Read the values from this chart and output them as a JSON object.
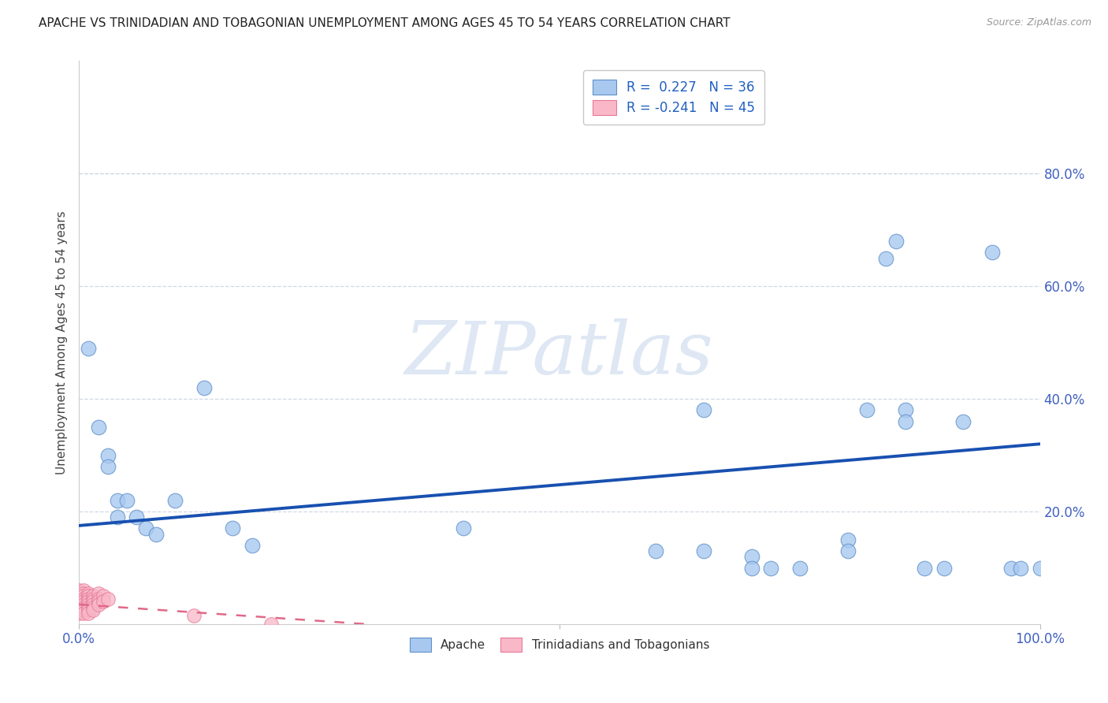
{
  "title": "APACHE VS TRINIDADIAN AND TOBAGONIAN UNEMPLOYMENT AMONG AGES 45 TO 54 YEARS CORRELATION CHART",
  "source_text": "Source: ZipAtlas.com",
  "ylabel": "Unemployment Among Ages 45 to 54 years",
  "xlim": [
    0,
    1.0
  ],
  "ylim": [
    0,
    1.0
  ],
  "xticks": [
    0.0,
    0.5,
    1.0
  ],
  "xticklabels": [
    "0.0%",
    "",
    "100.0%"
  ],
  "yticks": [
    0.2,
    0.4,
    0.6,
    0.8
  ],
  "yticklabels": [
    "20.0%",
    "40.0%",
    "60.0%",
    "80.0%"
  ],
  "background_color": "#ffffff",
  "grid_color": "#cccccc",
  "watermark": "ZIPatlas",
  "watermark_color_r": 200,
  "watermark_color_g": 210,
  "watermark_color_b": 230,
  "apache_color": "#a8c8f0",
  "apache_edge_color": "#6090c8",
  "trinidadian_color": "#f8b8c8",
  "trinidadian_edge_color": "#e87898",
  "apache_R": 0.227,
  "apache_N": 36,
  "trinidadian_R": -0.241,
  "trinidadian_N": 45,
  "apache_trend_color": "#1850b0",
  "trinidadian_trend_color": "#e06888",
  "apache_trend_x0": 0.0,
  "apache_trend_x1": 1.0,
  "apache_trend_y0": 0.175,
  "apache_trend_y1": 0.32,
  "trinidadian_trend_x0": 0.0,
  "trinidadian_trend_x1": 0.3,
  "trinidadian_trend_y0": 0.035,
  "trinidadian_trend_y1": 0.0,
  "apache_points": [
    [
      0.01,
      0.49
    ],
    [
      0.02,
      0.35
    ],
    [
      0.03,
      0.3
    ],
    [
      0.03,
      0.28
    ],
    [
      0.04,
      0.22
    ],
    [
      0.04,
      0.19
    ],
    [
      0.05,
      0.22
    ],
    [
      0.06,
      0.19
    ],
    [
      0.07,
      0.17
    ],
    [
      0.08,
      0.16
    ],
    [
      0.1,
      0.22
    ],
    [
      0.13,
      0.42
    ],
    [
      0.16,
      0.17
    ],
    [
      0.18,
      0.14
    ],
    [
      0.4,
      0.17
    ],
    [
      0.6,
      0.13
    ],
    [
      0.65,
      0.38
    ],
    [
      0.65,
      0.13
    ],
    [
      0.7,
      0.12
    ],
    [
      0.7,
      0.1
    ],
    [
      0.72,
      0.1
    ],
    [
      0.75,
      0.1
    ],
    [
      0.8,
      0.15
    ],
    [
      0.8,
      0.13
    ],
    [
      0.82,
      0.38
    ],
    [
      0.84,
      0.65
    ],
    [
      0.85,
      0.68
    ],
    [
      0.86,
      0.38
    ],
    [
      0.86,
      0.36
    ],
    [
      0.88,
      0.1
    ],
    [
      0.9,
      0.1
    ],
    [
      0.92,
      0.36
    ],
    [
      0.95,
      0.66
    ],
    [
      0.97,
      0.1
    ],
    [
      0.98,
      0.1
    ],
    [
      1.0,
      0.1
    ]
  ],
  "trinidadian_points": [
    [
      0.0,
      0.06
    ],
    [
      0.0,
      0.055
    ],
    [
      0.0,
      0.05
    ],
    [
      0.0,
      0.045
    ],
    [
      0.0,
      0.04
    ],
    [
      0.0,
      0.038
    ],
    [
      0.0,
      0.035
    ],
    [
      0.0,
      0.033
    ],
    [
      0.0,
      0.03
    ],
    [
      0.0,
      0.028
    ],
    [
      0.0,
      0.025
    ],
    [
      0.0,
      0.022
    ],
    [
      0.0,
      0.02
    ],
    [
      0.005,
      0.06
    ],
    [
      0.005,
      0.055
    ],
    [
      0.005,
      0.05
    ],
    [
      0.005,
      0.045
    ],
    [
      0.005,
      0.04
    ],
    [
      0.005,
      0.035
    ],
    [
      0.005,
      0.03
    ],
    [
      0.005,
      0.025
    ],
    [
      0.005,
      0.02
    ],
    [
      0.01,
      0.055
    ],
    [
      0.01,
      0.05
    ],
    [
      0.01,
      0.045
    ],
    [
      0.01,
      0.04
    ],
    [
      0.01,
      0.035
    ],
    [
      0.01,
      0.03
    ],
    [
      0.01,
      0.025
    ],
    [
      0.01,
      0.02
    ],
    [
      0.015,
      0.05
    ],
    [
      0.015,
      0.045
    ],
    [
      0.015,
      0.04
    ],
    [
      0.015,
      0.035
    ],
    [
      0.015,
      0.03
    ],
    [
      0.015,
      0.025
    ],
    [
      0.02,
      0.055
    ],
    [
      0.02,
      0.045
    ],
    [
      0.02,
      0.04
    ],
    [
      0.02,
      0.035
    ],
    [
      0.025,
      0.05
    ],
    [
      0.025,
      0.04
    ],
    [
      0.03,
      0.045
    ],
    [
      0.12,
      0.015
    ],
    [
      0.2,
      0.0
    ]
  ]
}
